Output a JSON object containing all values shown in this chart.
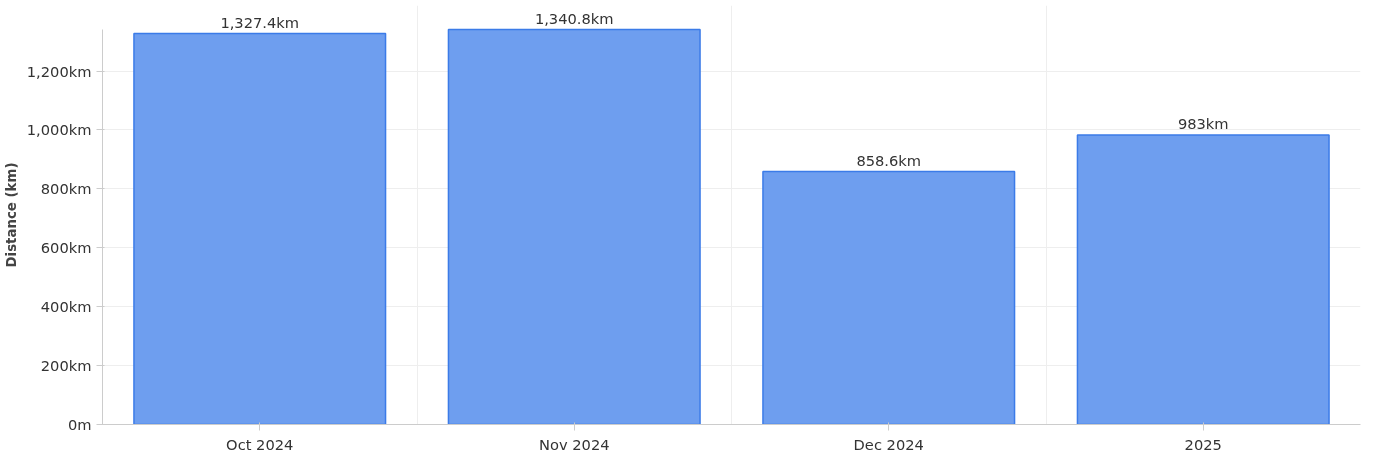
{
  "chart_data": {
    "type": "bar",
    "ylabel": "Distance (km)",
    "categories": [
      "Oct 2024",
      "Nov 2024",
      "Dec 2024",
      "2025"
    ],
    "values": [
      1327.4,
      1340.8,
      858.6,
      983
    ],
    "value_labels": [
      "1,327.4km",
      "1,340.8km",
      "858.6km",
      "983km"
    ],
    "color": "#6699ee",
    "ylim": [
      0,
      1342
    ],
    "yticks": [
      {
        "value": 0,
        "label": "0m"
      },
      {
        "value": 200,
        "label": "200km"
      },
      {
        "value": 400,
        "label": "400km"
      },
      {
        "value": 600,
        "label": "600km"
      },
      {
        "value": 800,
        "label": "800km"
      },
      {
        "value": 1000,
        "label": "1,000km"
      },
      {
        "value": 1200,
        "label": "1,200km"
      }
    ],
    "grid": true
  }
}
